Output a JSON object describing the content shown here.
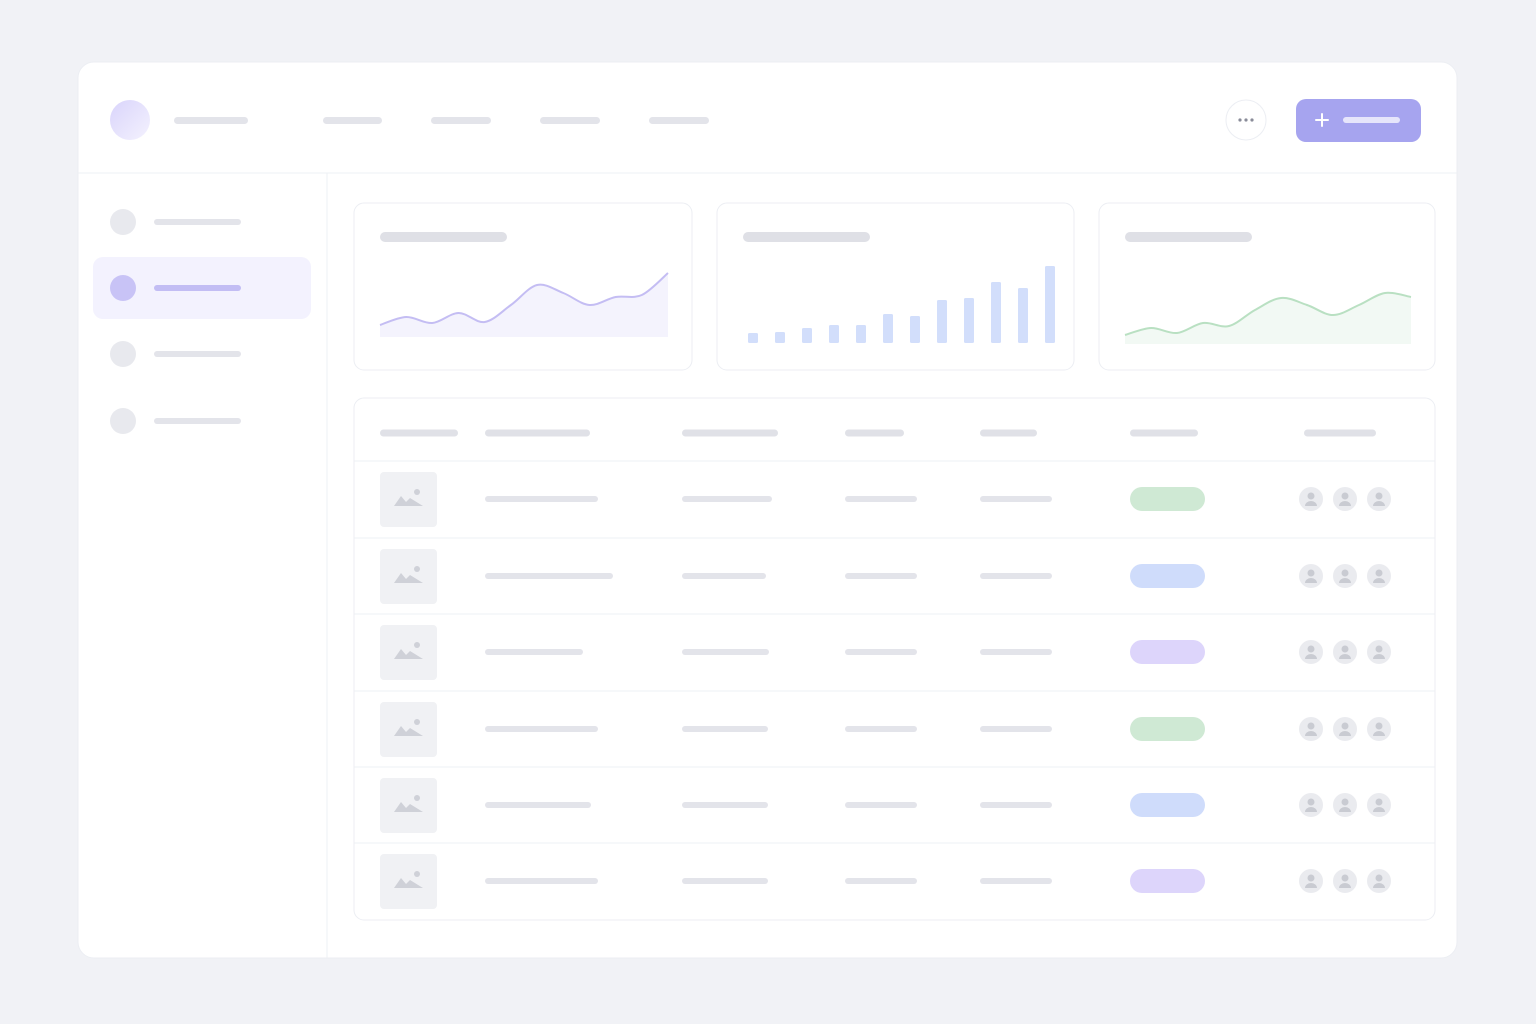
{
  "widgets": [
    {
      "type": "line",
      "color": "#c4bdf3",
      "values": [
        10,
        18,
        12,
        22,
        13,
        30,
        50,
        42,
        30,
        38,
        40,
        62
      ]
    },
    {
      "type": "bar",
      "color": "#d2defb",
      "values": [
        10,
        11,
        15,
        18,
        18,
        29,
        27,
        43,
        45,
        61,
        55,
        77
      ]
    },
    {
      "type": "line",
      "color": "#b9e0c2",
      "values": [
        7,
        14,
        9,
        19,
        16,
        32,
        44,
        37,
        27,
        37,
        49,
        45
      ]
    }
  ]
}
